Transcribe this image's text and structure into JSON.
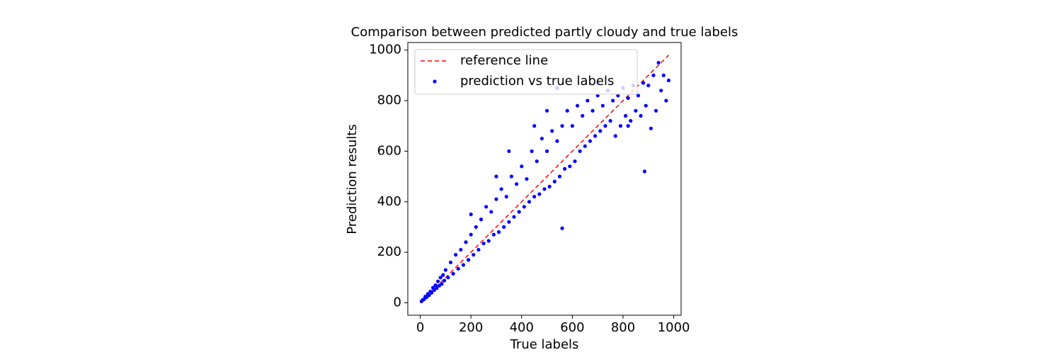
{
  "chart_data": {
    "type": "scatter",
    "title": "Comparison between predicted partly cloudy and true labels",
    "x_label": "True labels",
    "y_label": "Prediction results",
    "xlim": [
      -49,
      1029
    ],
    "ylim": [
      -49,
      1030
    ],
    "xticks": [
      0,
      200,
      400,
      600,
      800,
      1000
    ],
    "yticks": [
      0,
      200,
      400,
      600,
      800,
      1000
    ],
    "legend": "upper left",
    "series": [
      {
        "name": "reference line",
        "type": "line",
        "color": "#ff0000",
        "dashed": true,
        "x": [
          0,
          980
        ],
        "values": [
          0,
          980
        ]
      },
      {
        "name": "prediction vs true labels",
        "type": "scatter",
        "color": "#0000ff",
        "x": [
          5,
          10,
          15,
          20,
          25,
          30,
          35,
          40,
          45,
          50,
          55,
          60,
          65,
          70,
          75,
          80,
          85,
          90,
          95,
          100,
          110,
          120,
          130,
          140,
          150,
          160,
          170,
          180,
          190,
          200,
          210,
          220,
          230,
          240,
          250,
          260,
          270,
          280,
          290,
          300,
          310,
          320,
          330,
          340,
          350,
          360,
          370,
          380,
          390,
          400,
          410,
          420,
          430,
          440,
          450,
          460,
          470,
          480,
          490,
          500,
          510,
          520,
          530,
          540,
          550,
          560,
          570,
          580,
          590,
          600,
          610,
          620,
          630,
          640,
          650,
          660,
          670,
          680,
          690,
          700,
          710,
          720,
          730,
          740,
          750,
          760,
          770,
          780,
          790,
          800,
          810,
          820,
          830,
          840,
          850,
          860,
          870,
          880,
          890,
          900,
          910,
          920,
          930,
          940,
          950,
          960,
          970,
          980,
          560,
          885,
          500,
          540,
          700,
          820,
          300,
          350,
          450,
          200
        ],
        "values": [
          6,
          12,
          14,
          25,
          22,
          35,
          30,
          45,
          40,
          60,
          50,
          70,
          58,
          85,
          68,
          100,
          75,
          110,
          88,
          130,
          100,
          160,
          115,
          190,
          135,
          210,
          150,
          240,
          170,
          270,
          190,
          300,
          210,
          330,
          235,
          380,
          245,
          360,
          270,
          410,
          280,
          450,
          300,
          420,
          320,
          500,
          340,
          470,
          360,
          540,
          380,
          490,
          400,
          600,
          420,
          560,
          430,
          650,
          450,
          600,
          460,
          680,
          480,
          640,
          500,
          700,
          530,
          760,
          540,
          700,
          560,
          780,
          600,
          740,
          620,
          800,
          640,
          760,
          660,
          820,
          680,
          780,
          700,
          840,
          720,
          800,
          660,
          820,
          700,
          850,
          740,
          810,
          720,
          860,
          760,
          820,
          740,
          870,
          780,
          860,
          690,
          900,
          760,
          950,
          840,
          900,
          800,
          880,
          295,
          520,
          760,
          850,
          870,
          700,
          500,
          600,
          700,
          350
        ]
      }
    ]
  }
}
